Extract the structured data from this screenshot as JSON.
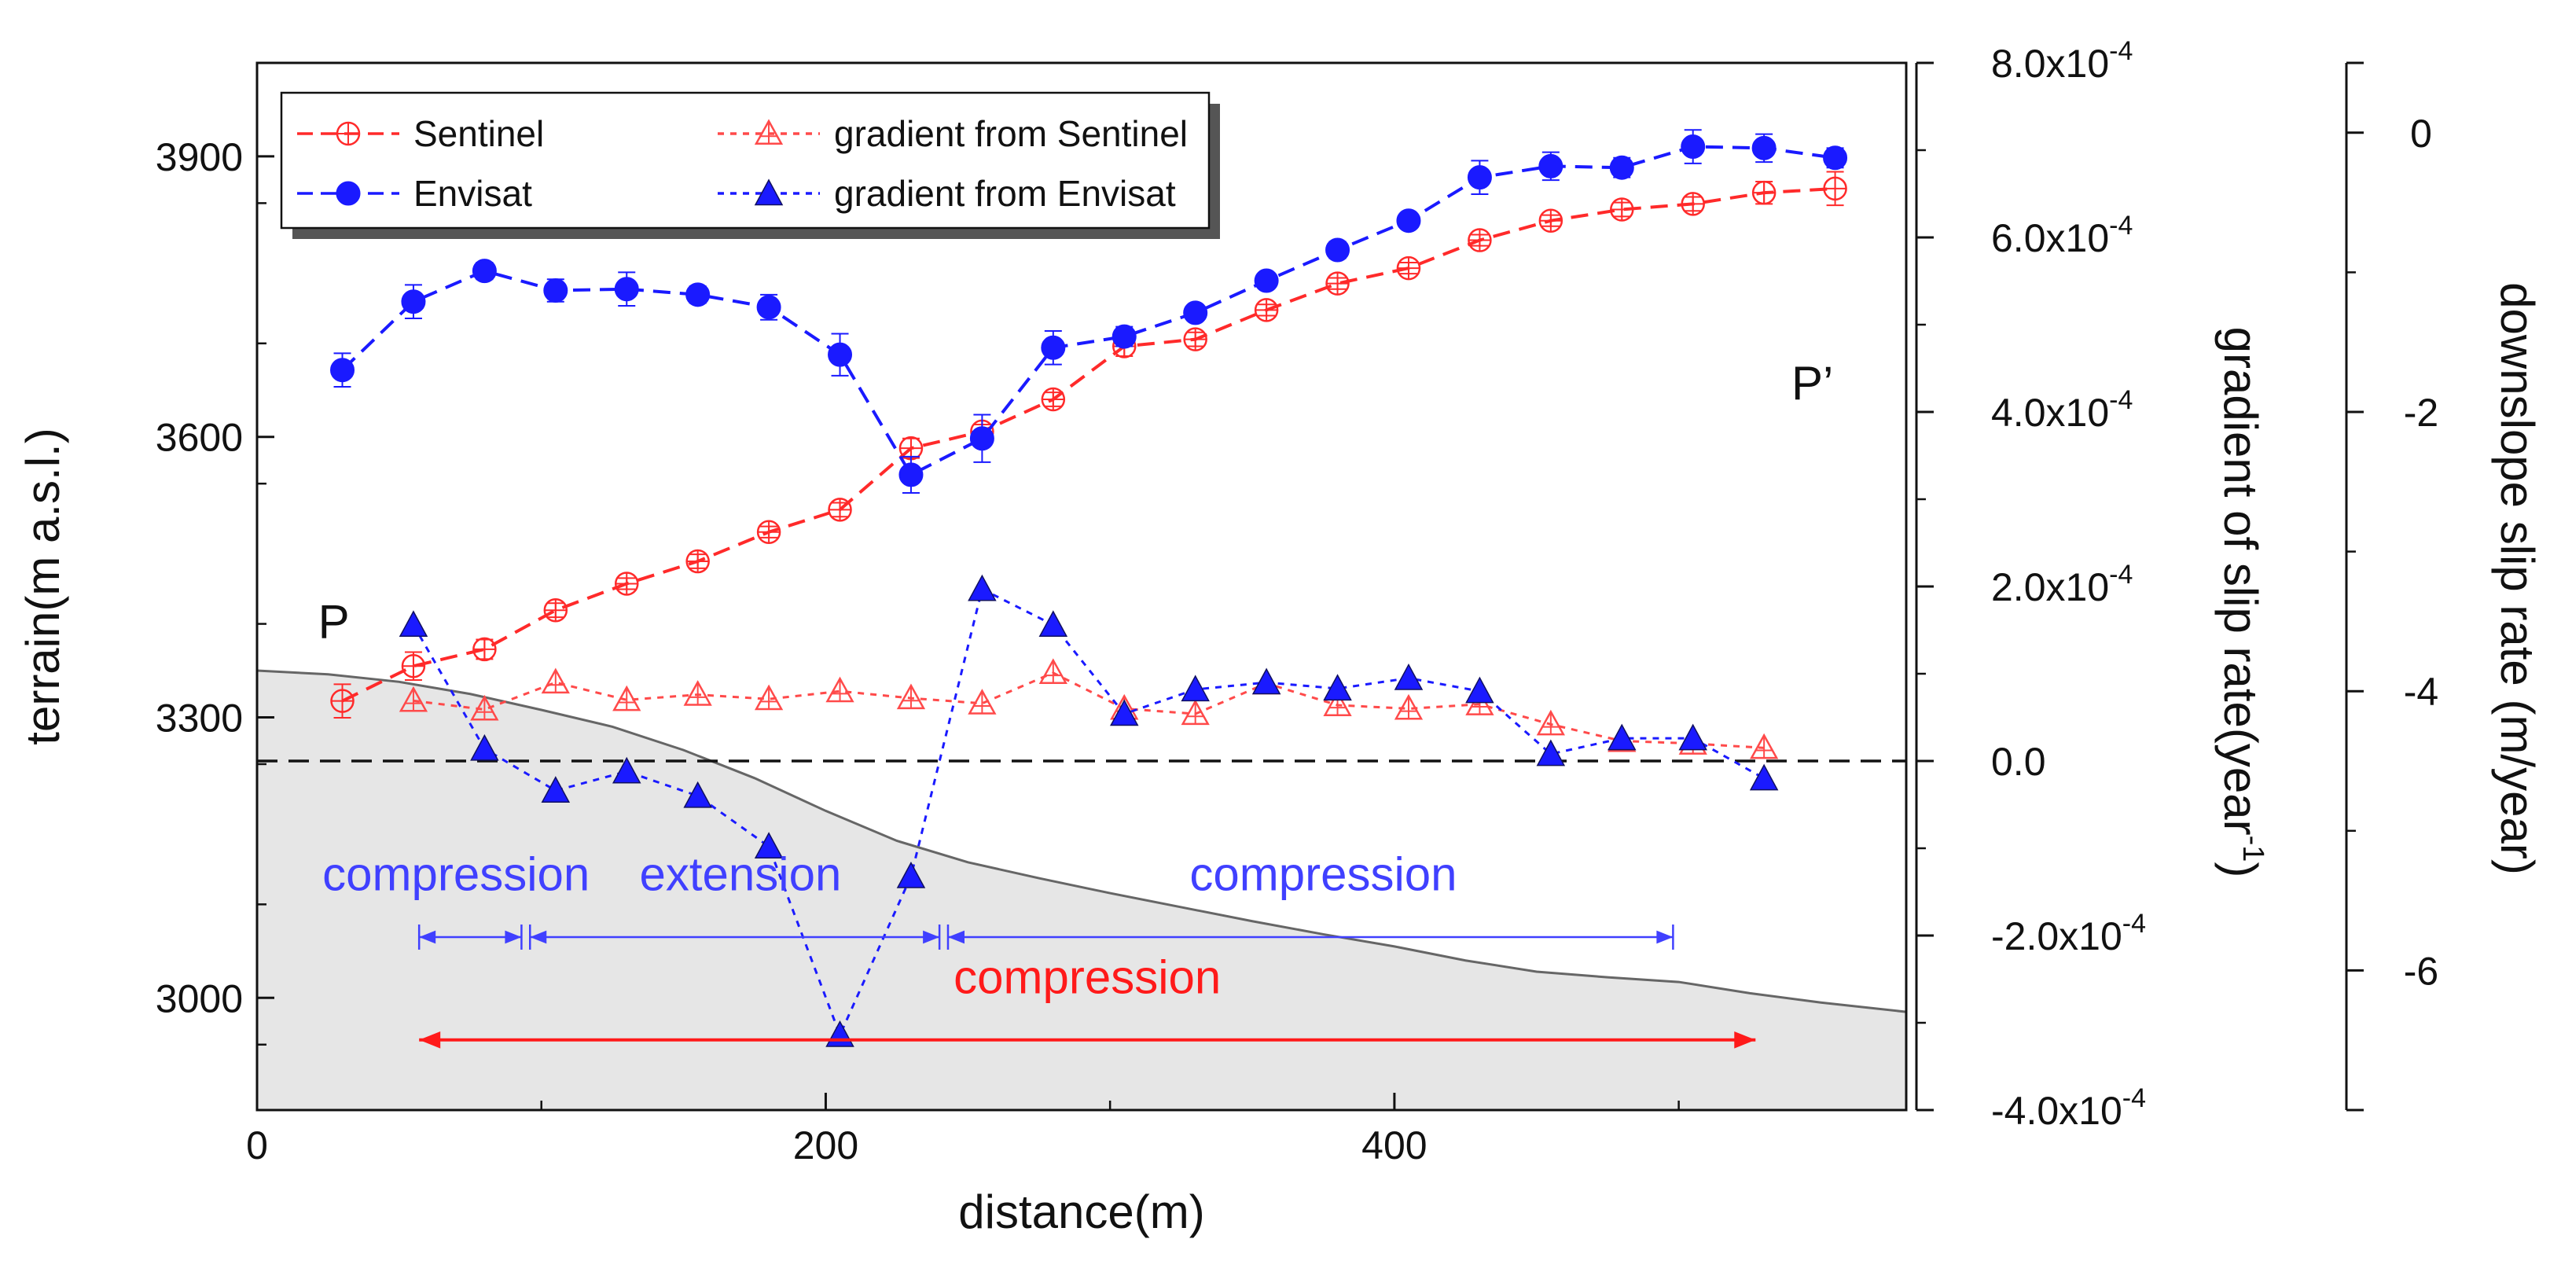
{
  "chart_data": {
    "type": "line",
    "x": {
      "label": "distance(m)",
      "range": [
        0,
        580
      ],
      "ticks": [
        {
          "value": 0,
          "label": "0"
        },
        {
          "value": 200,
          "label": "200"
        },
        {
          "value": 400,
          "label": "400"
        }
      ]
    },
    "y_terrain": {
      "label": "terrain(m a.s.l.)",
      "range": [
        2880,
        4000
      ],
      "ticks": [
        {
          "value": 3000,
          "label": "3000"
        },
        {
          "value": 3300,
          "label": "3300"
        },
        {
          "value": 3600,
          "label": "3600"
        },
        {
          "value": 3900,
          "label": "3900"
        }
      ]
    },
    "y_gradient": {
      "label": "gradient of slip rate(year",
      "label_sup": "-1",
      "label_close": ")",
      "range": [
        -0.0004,
        0.0008
      ],
      "ticks": [
        {
          "value": -0.0004,
          "label": "-4.0x10",
          "exp": "-4"
        },
        {
          "value": -0.0002,
          "label": "-2.0x10",
          "exp": "-4"
        },
        {
          "value": 0,
          "label": "0.0"
        },
        {
          "value": 0.0002,
          "label": "2.0x10",
          "exp": "-4"
        },
        {
          "value": 0.0004,
          "label": "4.0x10",
          "exp": "-4"
        },
        {
          "value": 0.0006,
          "label": "6.0x10",
          "exp": "-4"
        },
        {
          "value": 0.0008,
          "label": "8.0x10",
          "exp": "-4"
        }
      ]
    },
    "y_slip": {
      "label": "downslope slip rate (m/year)",
      "range": [
        -7,
        0.5
      ],
      "ticks": [
        {
          "value": 0,
          "label": "0"
        },
        {
          "value": -2,
          "label": "-2"
        },
        {
          "value": -4,
          "label": "-4"
        },
        {
          "value": -6,
          "label": "-6"
        }
      ]
    },
    "terrain_profile": {
      "x": [
        0,
        25,
        50,
        75,
        100,
        125,
        150,
        175,
        200,
        225,
        250,
        275,
        300,
        325,
        350,
        375,
        400,
        425,
        450,
        475,
        500,
        525,
        550,
        580
      ],
      "y": [
        3350,
        3346,
        3338,
        3325,
        3308,
        3290,
        3265,
        3235,
        3200,
        3168,
        3145,
        3128,
        3112,
        3097,
        3082,
        3068,
        3055,
        3040,
        3028,
        3022,
        3017,
        3005,
        2995,
        2985
      ]
    },
    "series": [
      {
        "name": "Sentinel",
        "axis": "slip",
        "color": "#ff2a2a",
        "marker": "circle-cross",
        "x": [
          30,
          55,
          80,
          105,
          130,
          155,
          180,
          205,
          230,
          255,
          280,
          305,
          330,
          355,
          380,
          405,
          430,
          455,
          480,
          505,
          530,
          555
        ],
        "y": [
          -4.07,
          -3.82,
          -3.7,
          -3.42,
          -3.23,
          -3.07,
          -2.86,
          -2.7,
          -2.26,
          -2.14,
          -1.91,
          -1.53,
          -1.48,
          -1.27,
          -1.08,
          -0.97,
          -0.77,
          -0.63,
          -0.55,
          -0.51,
          -0.43,
          -0.4
        ],
        "err": [
          0.12,
          0.1,
          0.07,
          0.05,
          0.04,
          0.05,
          0.04,
          0.05,
          0.07,
          0.05,
          0.05,
          0.07,
          0.05,
          0.04,
          0.04,
          0.04,
          0.04,
          0.04,
          0.05,
          0.05,
          0.08,
          0.12
        ]
      },
      {
        "name": "Envisat",
        "axis": "slip",
        "color": "#1a1aff",
        "marker": "filled-circle",
        "x": [
          30,
          55,
          80,
          105,
          130,
          155,
          180,
          205,
          230,
          255,
          280,
          305,
          330,
          355,
          380,
          405,
          430,
          455,
          480,
          505,
          530,
          555
        ],
        "y": [
          -1.7,
          -1.21,
          -0.99,
          -1.13,
          -1.12,
          -1.16,
          -1.25,
          -1.59,
          -2.45,
          -2.19,
          -1.54,
          -1.46,
          -1.29,
          -1.06,
          -0.84,
          -0.63,
          -0.32,
          -0.24,
          -0.25,
          -0.1,
          -0.11,
          -0.18
        ],
        "err": [
          0.12,
          0.12,
          0.06,
          0.08,
          0.12,
          0.06,
          0.09,
          0.15,
          0.13,
          0.17,
          0.12,
          0.07,
          0.05,
          0.05,
          0.06,
          0.05,
          0.12,
          0.1,
          0.07,
          0.12,
          0.1,
          0.07
        ]
      },
      {
        "name": "gradient from Sentinel",
        "axis": "gradient",
        "color": "#ff4a4a",
        "marker": "open-triangle",
        "x": [
          55,
          80,
          105,
          130,
          155,
          180,
          205,
          230,
          255,
          280,
          305,
          330,
          355,
          380,
          405,
          430,
          455,
          480,
          505,
          530
        ],
        "y": [
          6.9e-05,
          5.9e-05,
          9e-05,
          7e-05,
          7.6e-05,
          7.1e-05,
          8e-05,
          7.2e-05,
          6.6e-05,
          0.000101,
          6e-05,
          5.4e-05,
          8.9e-05,
          6.4e-05,
          6e-05,
          6.5e-05,
          4.2e-05,
          2.3e-05,
          2e-05,
          1.5e-05
        ]
      },
      {
        "name": "gradient from Envisat",
        "axis": "gradient",
        "color": "#1a1aff",
        "marker": "filled-triangle",
        "x": [
          55,
          80,
          105,
          130,
          155,
          180,
          205,
          230,
          255,
          280,
          305,
          330,
          355,
          380,
          405,
          430,
          455,
          480,
          505,
          530
        ],
        "y": [
          0.000156,
          1.4e-05,
          -3.4e-05,
          -1.2e-05,
          -4e-05,
          -9.8e-05,
          -0.000314,
          -0.000132,
          0.000197,
          0.000156,
          5.4e-05,
          8.2e-05,
          9e-05,
          8.3e-05,
          9.5e-05,
          8e-05,
          8e-06,
          2.6e-05,
          2.6e-05,
          -2e-05
        ]
      }
    ],
    "zero_line": {
      "axis": "gradient",
      "value": 0
    },
    "annotations": [
      {
        "text": "P",
        "x": 27,
        "y": 3385,
        "color": "#111111"
      },
      {
        "text": "P’",
        "x": 547,
        "y": 3640,
        "color": "#111111"
      }
    ],
    "regions": [
      {
        "text": "compression",
        "from": 57,
        "to": 93,
        "label_x": 70,
        "label_y": 3115,
        "arrow_y": 3065,
        "color": "#4040ff"
      },
      {
        "text": "extension",
        "from": 96,
        "to": 240,
        "label_x": 170,
        "label_y": 3115,
        "arrow_y": 3065,
        "color": "#4040ff"
      },
      {
        "text": "compression",
        "from": 243,
        "to": 498,
        "label_x": 375,
        "label_y": 3115,
        "arrow_y": 3065,
        "color": "#4040ff"
      },
      {
        "text": "compression",
        "from": 57,
        "to": 527,
        "label_x": 292,
        "label_y": 3005,
        "arrow_y": 2955,
        "color": "#ff1a1a"
      }
    ],
    "legend": {
      "position": "top-left",
      "entries": [
        "Sentinel",
        "gradient from Sentinel",
        "Envisat",
        "gradient from Envisat"
      ]
    }
  }
}
